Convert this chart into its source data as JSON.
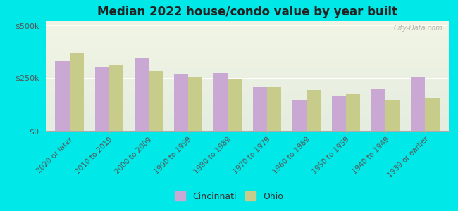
{
  "title": "Median 2022 house/condo value by year built",
  "categories": [
    "2020 or later",
    "2010 to 2019",
    "2000 to 2009",
    "1990 to 1999",
    "1980 to 1989",
    "1970 to 1979",
    "1960 to 1969",
    "1950 to 1959",
    "1940 to 1949",
    "1939 or earlier"
  ],
  "cincinnati_values": [
    330000,
    305000,
    345000,
    270000,
    275000,
    210000,
    148000,
    168000,
    200000,
    252000
  ],
  "ohio_values": [
    370000,
    310000,
    285000,
    255000,
    242000,
    210000,
    192000,
    172000,
    148000,
    155000
  ],
  "cincinnati_color": "#c9a8d4",
  "ohio_color": "#c8cc8a",
  "background_color": "#00e8e8",
  "plot_bg_top": "#f2f5e4",
  "plot_bg_bottom": "#e4ede0",
  "ylabel_ticks": [
    "$0",
    "$250k",
    "$500k"
  ],
  "ytick_values": [
    0,
    250000,
    500000
  ],
  "ylim": [
    0,
    520000
  ],
  "legend_labels": [
    "Cincinnati",
    "Ohio"
  ],
  "watermark": "City-Data.com",
  "bar_width": 0.36
}
